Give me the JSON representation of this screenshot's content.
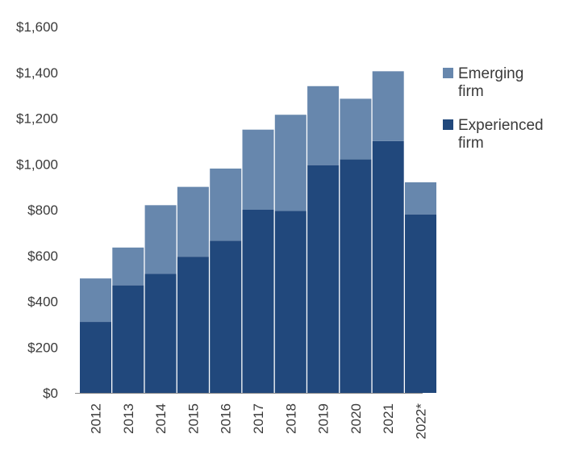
{
  "chart_data": {
    "type": "bar",
    "stacked": true,
    "categories": [
      "2012",
      "2013",
      "2014",
      "2015",
      "2016",
      "2017",
      "2018",
      "2019",
      "2020",
      "2021",
      "2022*"
    ],
    "series": [
      {
        "name": "Experienced firm",
        "color": "#21487c",
        "values": [
          310,
          470,
          520,
          595,
          665,
          800,
          795,
          995,
          1020,
          1100,
          780
        ]
      },
      {
        "name": "Emerging firm",
        "color": "#6787ad",
        "values": [
          190,
          165,
          300,
          305,
          315,
          350,
          420,
          345,
          265,
          305,
          140
        ]
      }
    ],
    "y_ticks": [
      "$1,600",
      "$1,400",
      "$1,200",
      "$1,000",
      "$800",
      "$600",
      "$400",
      "$200",
      "$0"
    ],
    "ylim": [
      0,
      1600
    ],
    "grid": false,
    "legend": {
      "position": "right",
      "items": [
        {
          "line1": "Emerging",
          "line2": "firm",
          "color": "#6787ad"
        },
        {
          "line1": "Experienced",
          "line2": "firm",
          "color": "#21487c"
        }
      ]
    }
  }
}
